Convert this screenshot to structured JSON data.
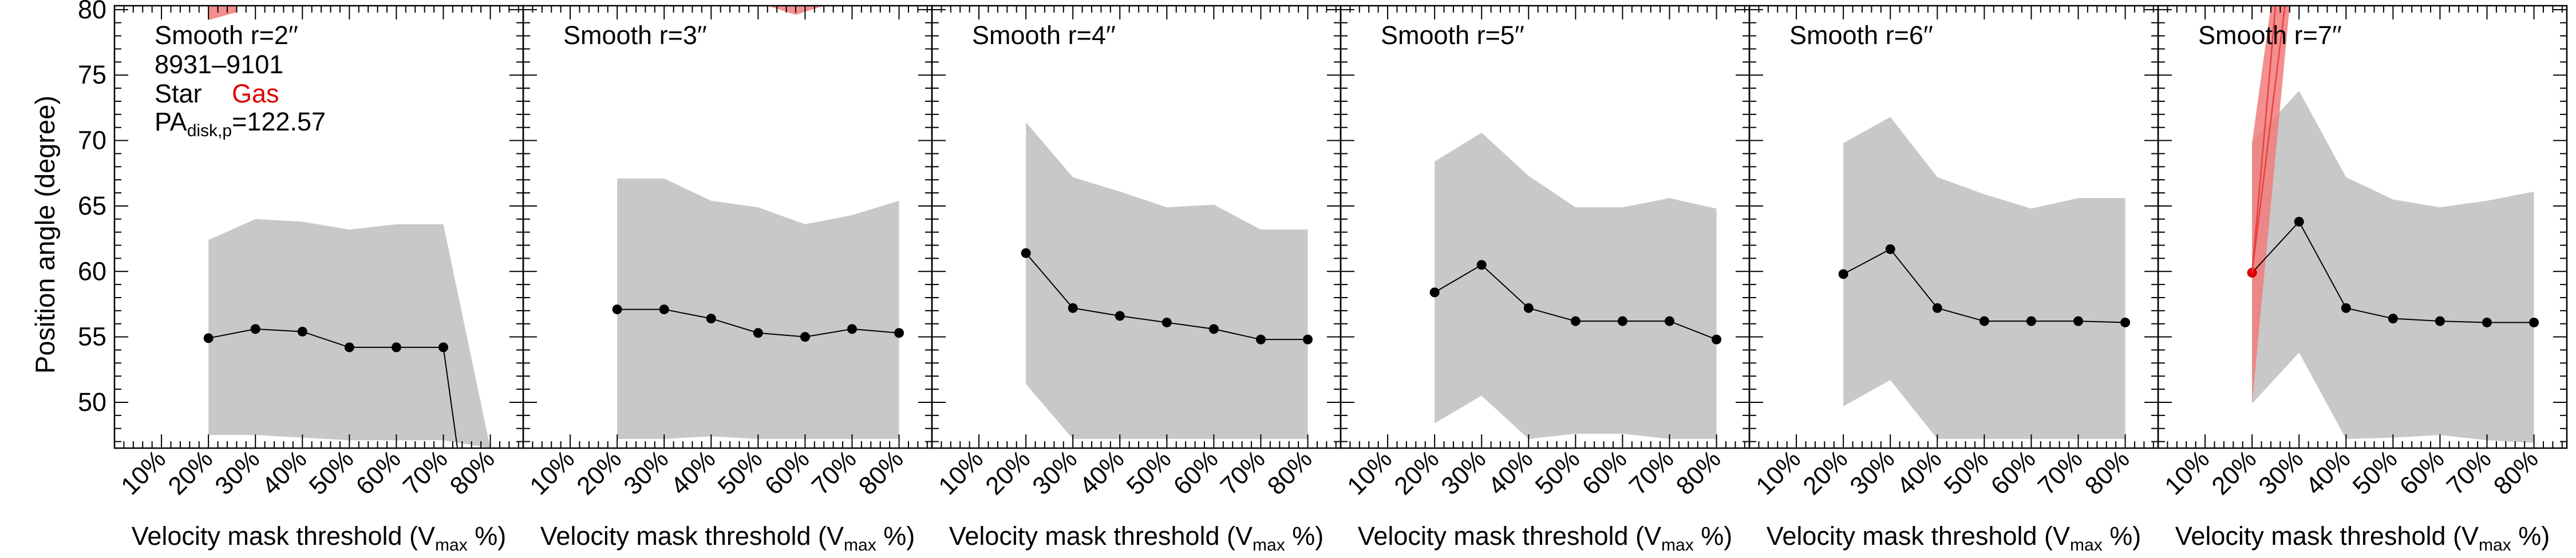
{
  "figure": {
    "ylabel": "Position angle (degree)",
    "xlabel_prefix": "Velocity mask threshold (V",
    "xlabel_sub": "max",
    "xlabel_suffix": " %)",
    "info_lines": [
      "8931–9101"
    ],
    "legend": {
      "star": "Star",
      "gas": "Gas"
    },
    "pa_label_prefix": "PA",
    "pa_label_sub": "disk,p",
    "pa_label_value": "=122.57"
  },
  "colors": {
    "band_gray": "#c8c8c8",
    "gas_red": "#f27b7b",
    "gas_line": "#e84040",
    "gas_point": "#e00000",
    "star_line": "#000000",
    "gas_label": "#e00000"
  },
  "chart_data": [
    {
      "type": "line",
      "title": "Smooth r=2′′",
      "categories": [
        "10%",
        "20%",
        "30%",
        "40%",
        "50%",
        "60%",
        "70%",
        "80%"
      ],
      "x": [
        10,
        20,
        30,
        40,
        50,
        60,
        70,
        80
      ],
      "ylim": [
        46.5,
        80.3
      ],
      "yticks": [
        50,
        55,
        60,
        65,
        70,
        75,
        80
      ],
      "series": [
        {
          "role": "star",
          "x": [
            20,
            30,
            40,
            50,
            60,
            70,
            73
          ],
          "values": [
            54.9,
            55.6,
            55.4,
            54.2,
            54.2,
            54.2,
            46.5
          ],
          "markers": [
            true,
            true,
            true,
            true,
            true,
            true,
            false
          ]
        }
      ],
      "band": {
        "x": [
          20,
          30,
          40,
          50,
          60,
          70,
          80
        ],
        "upper": [
          62.4,
          64.0,
          63.8,
          63.2,
          63.6,
          63.6,
          46.5
        ],
        "lower": [
          47.5,
          47.5,
          47.3,
          47.1,
          47.1,
          47.1,
          46.5
        ]
      },
      "gas_band": {
        "x": [
          20,
          20,
          26
        ],
        "upper": [
          80.3,
          80.3,
          80.3
        ],
        "lower": [
          79.2,
          79.2,
          79.8
        ]
      }
    },
    {
      "type": "line",
      "title": "Smooth r=3′′",
      "categories": [
        "10%",
        "20%",
        "30%",
        "40%",
        "50%",
        "60%",
        "70%",
        "80%"
      ],
      "x": [
        10,
        20,
        30,
        40,
        50,
        60,
        70,
        80
      ],
      "ylim": [
        46.5,
        80.3
      ],
      "yticks": [
        50,
        55,
        60,
        65,
        70,
        75,
        80
      ],
      "series": [
        {
          "role": "star",
          "x": [
            20,
            30,
            40,
            50,
            60,
            70,
            80
          ],
          "values": [
            57.1,
            57.1,
            56.4,
            55.3,
            55.0,
            55.6,
            55.3
          ],
          "markers": [
            true,
            true,
            true,
            true,
            true,
            true,
            true
          ]
        }
      ],
      "band": {
        "x": [
          20,
          30,
          40,
          50,
          60,
          70,
          80
        ],
        "upper": [
          67.1,
          67.1,
          65.4,
          64.9,
          63.6,
          64.3,
          65.4
        ],
        "lower": [
          47.2,
          47.2,
          47.4,
          47.2,
          47.2,
          47.2,
          47.2
        ]
      },
      "gas_band": {
        "x": [
          52,
          58,
          64
        ],
        "upper": [
          80.3,
          80.3,
          80.3
        ],
        "lower": [
          80.3,
          79.6,
          80.3
        ]
      }
    },
    {
      "type": "line",
      "title": "Smooth r=4′′",
      "categories": [
        "10%",
        "20%",
        "30%",
        "40%",
        "50%",
        "60%",
        "70%",
        "80%"
      ],
      "x": [
        10,
        20,
        30,
        40,
        50,
        60,
        70,
        80
      ],
      "ylim": [
        46.5,
        80.3
      ],
      "yticks": [
        50,
        55,
        60,
        65,
        70,
        75,
        80
      ],
      "series": [
        {
          "role": "star",
          "x": [
            20,
            30,
            40,
            50,
            60,
            70,
            80
          ],
          "values": [
            61.4,
            57.2,
            56.6,
            56.1,
            55.6,
            54.8,
            54.8
          ],
          "markers": [
            true,
            true,
            true,
            true,
            true,
            true,
            true
          ]
        }
      ],
      "band": {
        "x": [
          20,
          30,
          40,
          50,
          60,
          70,
          80
        ],
        "upper": [
          71.4,
          67.2,
          66.1,
          64.9,
          65.1,
          63.2,
          63.2
        ],
        "lower": [
          51.4,
          47.2,
          47.2,
          47.2,
          47.2,
          47.2,
          47.2
        ]
      }
    },
    {
      "type": "line",
      "title": "Smooth r=5′′",
      "categories": [
        "10%",
        "20%",
        "30%",
        "40%",
        "50%",
        "60%",
        "70%",
        "80%"
      ],
      "x": [
        10,
        20,
        30,
        40,
        50,
        60,
        70,
        80
      ],
      "ylim": [
        46.5,
        80.3
      ],
      "yticks": [
        50,
        55,
        60,
        65,
        70,
        75,
        80
      ],
      "series": [
        {
          "role": "star",
          "x": [
            20,
            30,
            40,
            50,
            60,
            70,
            80
          ],
          "values": [
            58.4,
            60.5,
            57.2,
            56.2,
            56.2,
            56.2,
            54.8
          ],
          "markers": [
            true,
            true,
            true,
            true,
            true,
            true,
            true
          ]
        }
      ],
      "band": {
        "x": [
          20,
          30,
          40,
          50,
          60,
          70,
          80
        ],
        "upper": [
          68.4,
          70.6,
          67.3,
          64.9,
          64.9,
          65.6,
          64.8
        ],
        "lower": [
          48.4,
          50.5,
          47.2,
          47.6,
          47.6,
          47.2,
          47.2
        ]
      }
    },
    {
      "type": "line",
      "title": "Smooth r=6′′",
      "categories": [
        "10%",
        "20%",
        "30%",
        "40%",
        "50%",
        "60%",
        "70%",
        "80%"
      ],
      "x": [
        10,
        20,
        30,
        40,
        50,
        60,
        70,
        80
      ],
      "ylim": [
        46.5,
        80.3
      ],
      "yticks": [
        50,
        55,
        60,
        65,
        70,
        75,
        80
      ],
      "series": [
        {
          "role": "star",
          "x": [
            20,
            30,
            40,
            50,
            60,
            70,
            80
          ],
          "values": [
            59.8,
            61.7,
            57.2,
            56.2,
            56.2,
            56.2,
            56.1
          ],
          "markers": [
            true,
            true,
            true,
            true,
            true,
            true,
            true
          ]
        }
      ],
      "band": {
        "x": [
          20,
          30,
          40,
          50,
          60,
          70,
          80
        ],
        "upper": [
          69.8,
          71.8,
          67.2,
          65.9,
          64.8,
          65.6,
          65.6
        ],
        "lower": [
          49.7,
          51.7,
          47.2,
          47.2,
          47.2,
          47.2,
          47.2
        ]
      },
      "gas_band": {
        "x": [
          72,
          80,
          80
        ],
        "upper": [
          80.3,
          80.3,
          80.3
        ],
        "lower": [
          80.3,
          80.3,
          79.7
        ]
      }
    },
    {
      "type": "line",
      "title": "Smooth r=7′′",
      "categories": [
        "10%",
        "20%",
        "30%",
        "40%",
        "50%",
        "60%",
        "70%",
        "80%"
      ],
      "x": [
        10,
        20,
        30,
        40,
        50,
        60,
        70,
        80
      ],
      "ylim": [
        46.5,
        80.3
      ],
      "yticks": [
        50,
        55,
        60,
        65,
        70,
        75,
        80
      ],
      "series": [
        {
          "role": "star",
          "x": [
            20,
            30,
            40,
            50,
            60,
            70,
            80
          ],
          "values": [
            59.9,
            63.8,
            57.2,
            56.4,
            56.2,
            56.1,
            56.1
          ],
          "markers": [
            true,
            true,
            true,
            true,
            true,
            true,
            true
          ]
        },
        {
          "role": "gas",
          "x": [
            20,
            25
          ],
          "values": [
            59.9,
            80.3
          ],
          "markers": [
            true,
            false
          ]
        },
        {
          "role": "gas",
          "x": [
            20,
            27
          ],
          "values": [
            59.9,
            80.3
          ],
          "markers": [
            false,
            false
          ]
        }
      ],
      "band": {
        "x": [
          20,
          30,
          40,
          50,
          60,
          70,
          80
        ],
        "upper": [
          69.9,
          73.8,
          67.2,
          65.5,
          64.9,
          65.4,
          66.1
        ],
        "lower": [
          49.9,
          53.8,
          47.2,
          47.3,
          47.5,
          47.1,
          46.9
        ]
      },
      "gas_band": {
        "x": [
          20,
          25,
          27,
          20
        ],
        "upper": [
          69.8,
          80.3,
          80.3,
          49.9
        ],
        "lower": [
          69.8,
          80.3,
          80.3,
          49.9
        ],
        "polygon": [
          [
            20,
            69.8
          ],
          [
            24,
            80.3
          ],
          [
            28,
            80.3
          ],
          [
            20,
            49.9
          ]
        ]
      }
    }
  ]
}
